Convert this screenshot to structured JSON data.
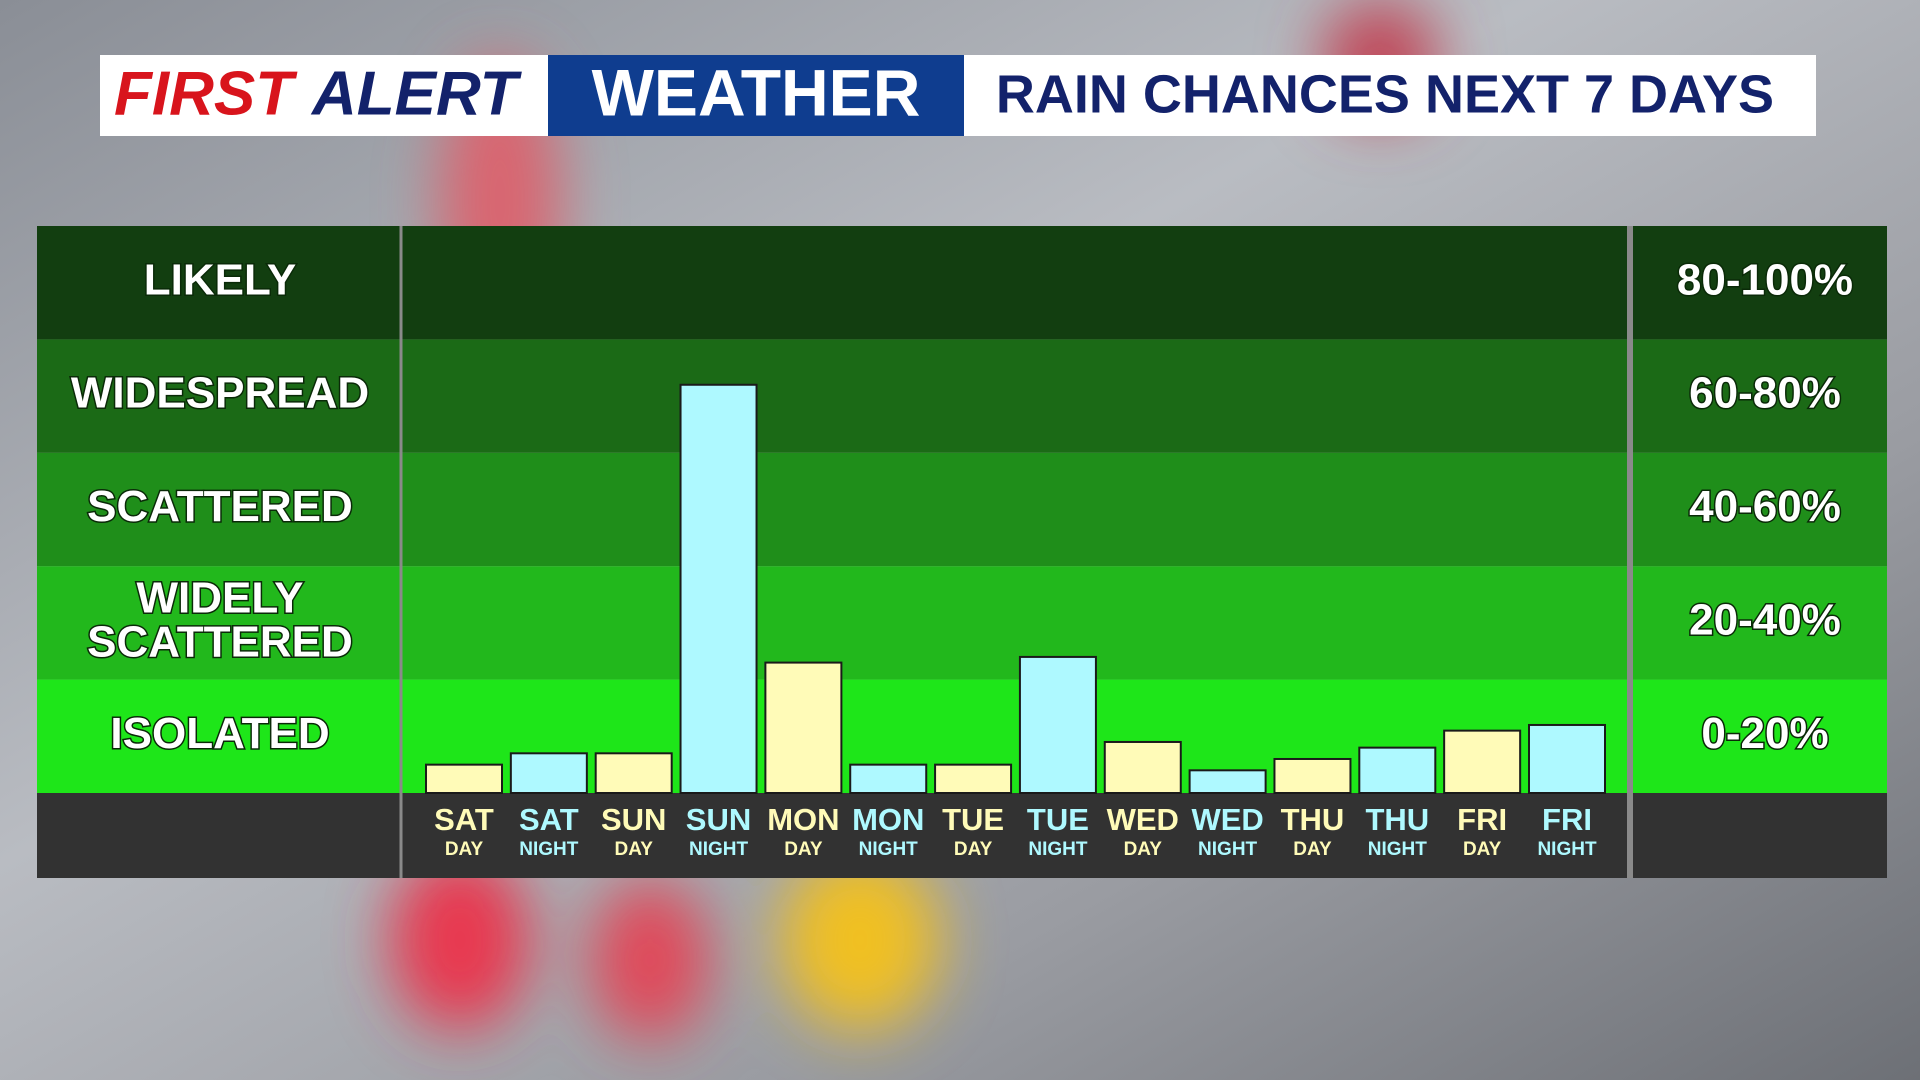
{
  "chart_data": {
    "type": "bar",
    "header": {
      "first": "FIRST",
      "alert": "ALERT",
      "weather": "WEATHER",
      "title": "RAIN CHANCES NEXT 7 DAYS"
    },
    "bands": [
      {
        "label": [
          "LIKELY"
        ],
        "range": "80-100%",
        "color": "#123e10"
      },
      {
        "label": [
          "WIDESPREAD"
        ],
        "range": "60-80%",
        "color": "#1b6a16"
      },
      {
        "label": [
          "SCATTERED"
        ],
        "range": "40-60%",
        "color": "#1f8e1a"
      },
      {
        "label": [
          "WIDELY",
          "SCATTERED"
        ],
        "range": "20-40%",
        "color": "#22b81c"
      },
      {
        "label": [
          "ISOLATED"
        ],
        "range": "0-20%",
        "color": "#1ee619"
      }
    ],
    "categories": [
      [
        "SAT",
        "DAY"
      ],
      [
        "SAT",
        "NIGHT"
      ],
      [
        "SUN",
        "DAY"
      ],
      [
        "SUN",
        "NIGHT"
      ],
      [
        "MON",
        "DAY"
      ],
      [
        "MON",
        "NIGHT"
      ],
      [
        "TUE",
        "DAY"
      ],
      [
        "TUE",
        "NIGHT"
      ],
      [
        "WED",
        "DAY"
      ],
      [
        "WED",
        "NIGHT"
      ],
      [
        "THU",
        "DAY"
      ],
      [
        "THU",
        "NIGHT"
      ],
      [
        "FRI",
        "DAY"
      ],
      [
        "FRI",
        "NIGHT"
      ]
    ],
    "values": [
      5,
      7,
      7,
      72,
      23,
      5,
      5,
      24,
      9,
      4,
      6,
      8,
      11,
      12
    ],
    "colors": [
      "#fffbb8",
      "#aef9ff",
      "#fffbb8",
      "#aef9ff",
      "#fffbb8",
      "#aef9ff",
      "#fffbb8",
      "#aef9ff",
      "#fffbb8",
      "#aef9ff",
      "#fffbb8",
      "#aef9ff",
      "#fffbb8",
      "#aef9ff"
    ],
    "ylim": [
      0,
      100
    ]
  }
}
